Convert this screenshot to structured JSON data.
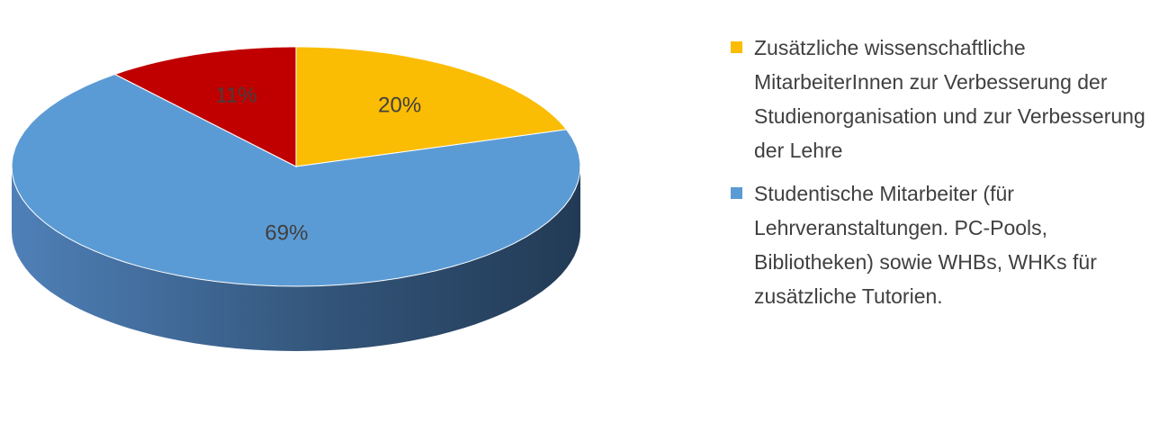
{
  "chart_data": {
    "type": "pie3d",
    "categories": [
      "Zusätzliche wissenschaftliche MitarbeiterInnen zur Verbesserung der Studienorganisation und zur Verbesserung der Lehre",
      "Studentische Mitarbeiter (für Lehrveranstaltungen. PC-Pools, Bibliotheken) sowie WHBs, WHKs für zusätzliche Tutorien.",
      null
    ],
    "values": [
      20,
      69,
      11
    ],
    "value_labels": [
      "20%",
      "69%",
      "11%"
    ],
    "colors": [
      "#fbbc04",
      "#5b9bd5",
      "#c00000"
    ],
    "legend": "right"
  }
}
